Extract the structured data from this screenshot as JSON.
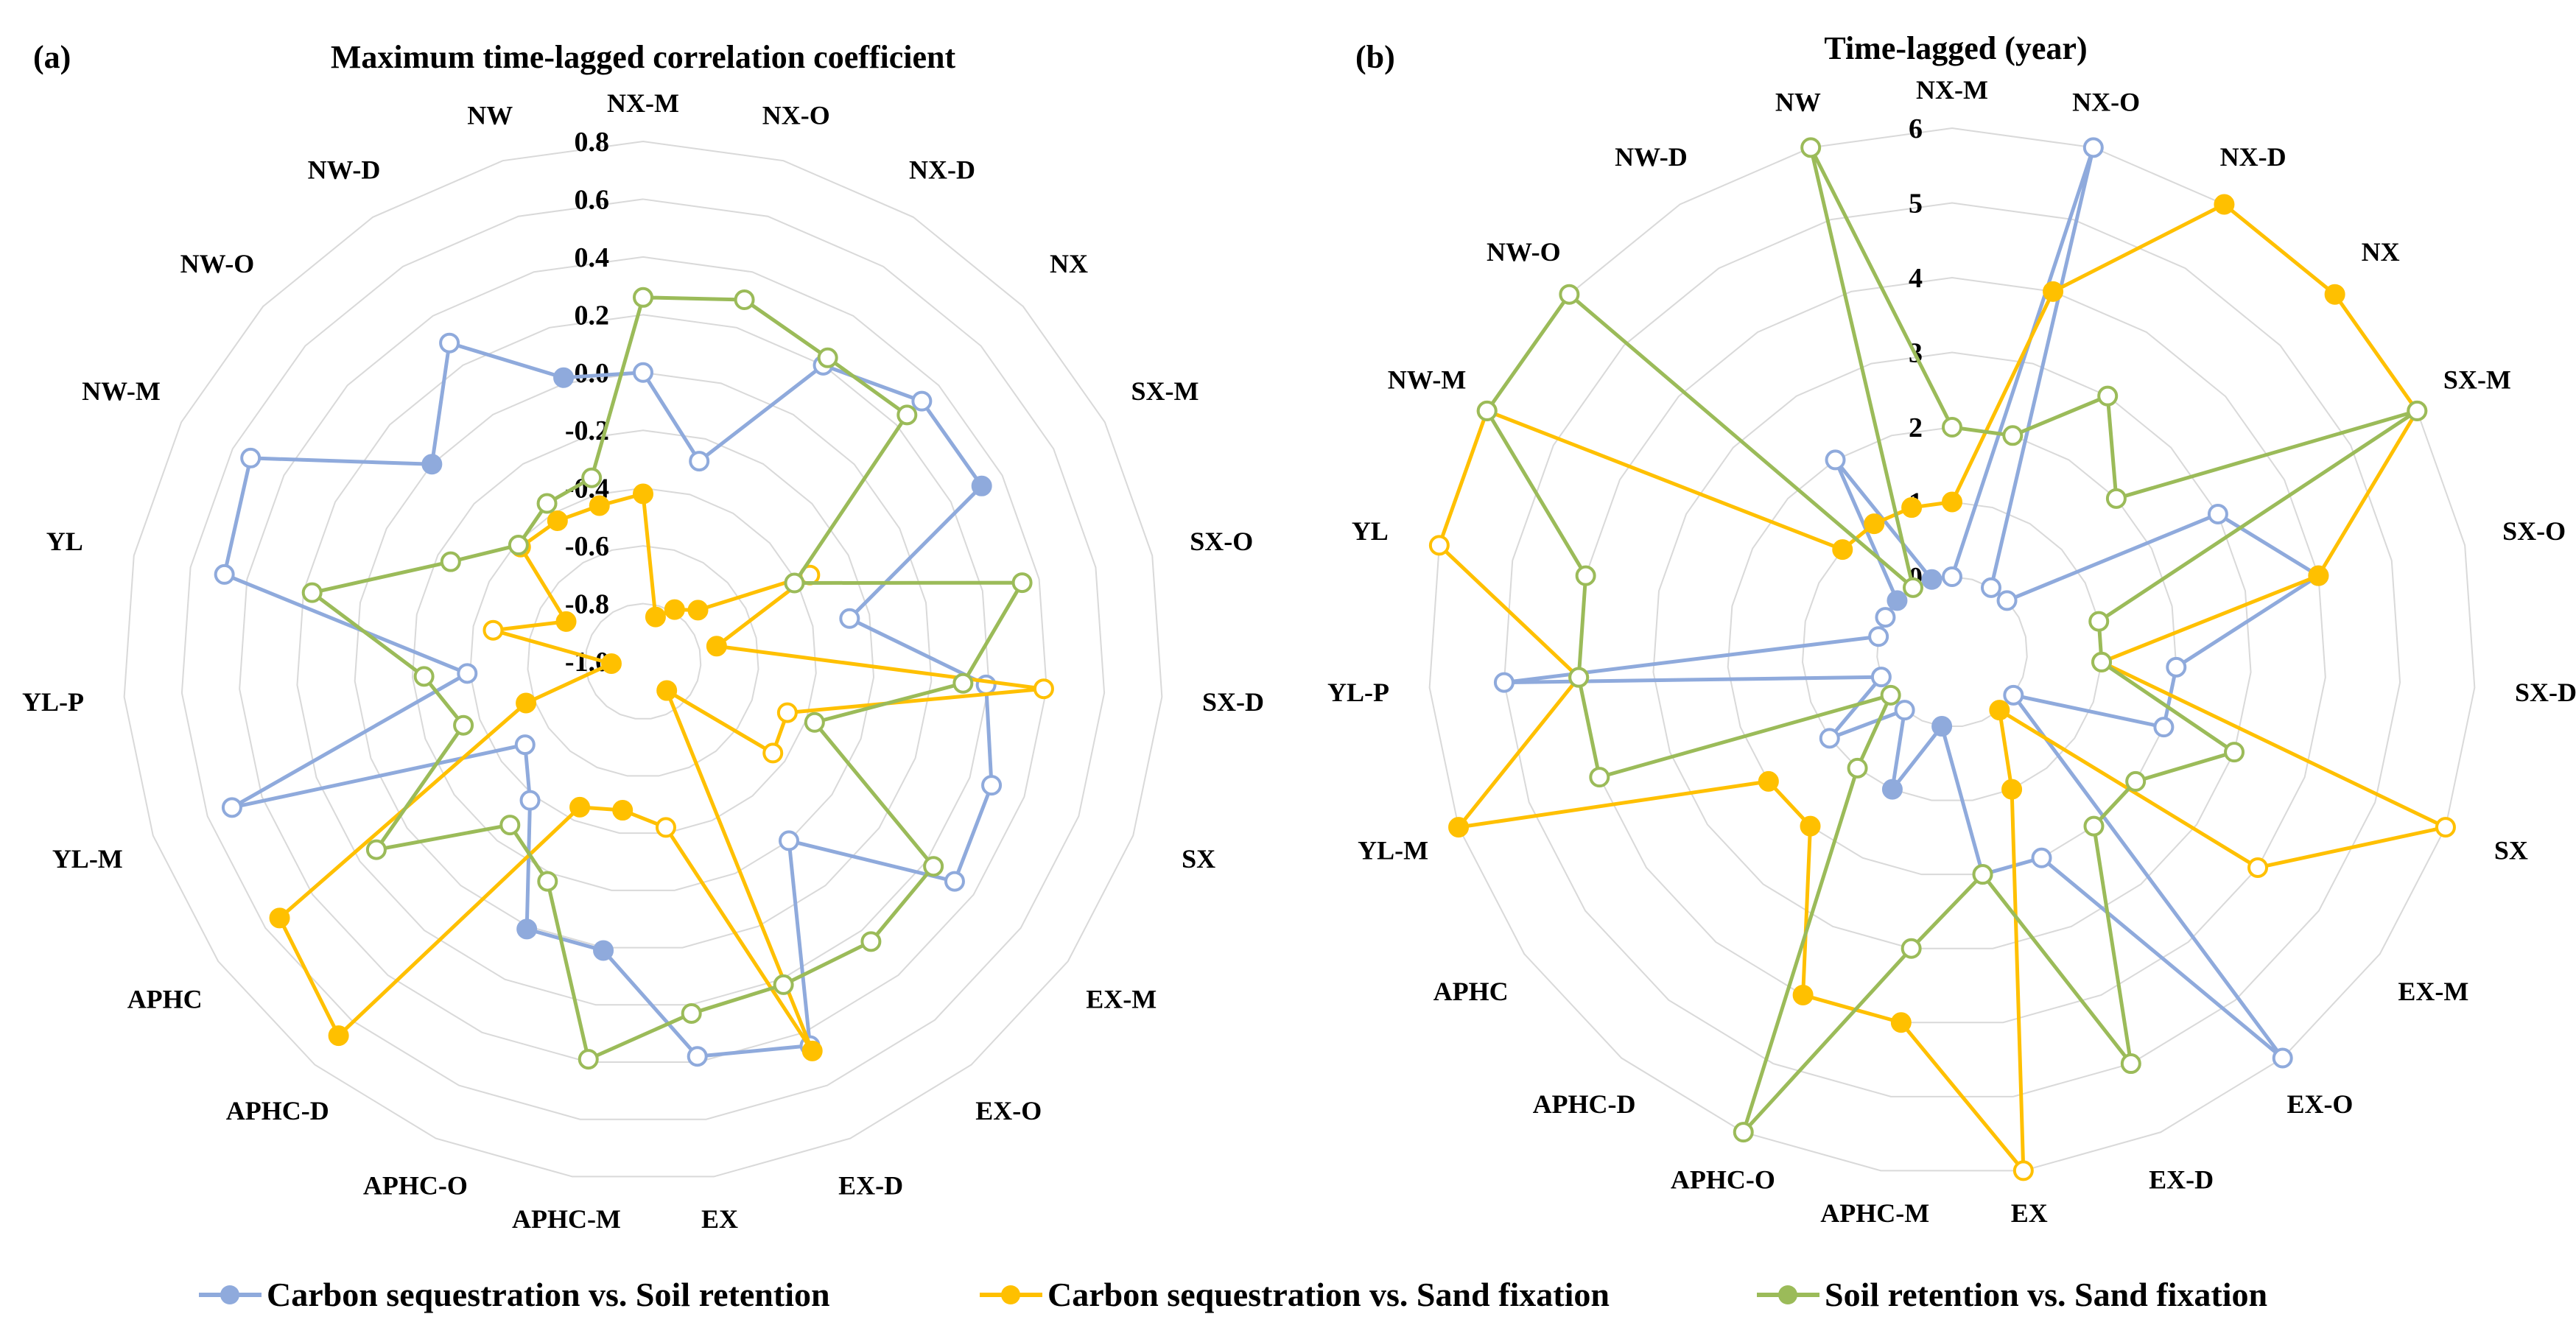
{
  "chart_data": [
    {
      "type": "radar",
      "panel_label": "(a)",
      "title": "Maximum time-lagged correlation coefficient",
      "categories": [
        "NX-M",
        "NX-O",
        "NX-D",
        "NX",
        "SX-M",
        "SX-O",
        "SX-D",
        "SX",
        "EX-M",
        "EX-O",
        "EX-D",
        "EX",
        "APHC-M",
        "APHC-O",
        "APHC-D",
        "APHC",
        "YL-M",
        "YL-P",
        "YL",
        "NW-M",
        "NW-O",
        "NW-D",
        "NW"
      ],
      "range": [
        -1.0,
        0.8
      ],
      "ticks": [
        "0.8",
        "0.6",
        "0.4",
        "0.2",
        "0.0",
        "-0.2",
        "-0.4",
        "-0.6",
        "-0.8",
        "-1.0"
      ],
      "tick_values": [
        0.8,
        0.6,
        0.4,
        0.2,
        0.0,
        -0.2,
        -0.4,
        -0.6,
        -0.8,
        -1.0
      ],
      "grid": true,
      "series": [
        {
          "name": "Carbon sequestration vs. Soil retention",
          "color": "#8FAADC",
          "values": [
            0.0,
            -0.28,
            0.2,
            0.32,
            0.32,
            -0.27,
            0.19,
            0.28,
            0.32,
            -0.2,
            0.45,
            0.38,
            0.01,
            0.01,
            -0.38,
            -0.5,
            0.51,
            -0.39,
            0.48,
            0.53,
            0.0,
            0.29,
            0.02
          ],
          "filled": [
            false,
            false,
            false,
            false,
            true,
            false,
            false,
            false,
            false,
            false,
            false,
            false,
            true,
            true,
            false,
            false,
            false,
            false,
            false,
            false,
            true,
            false,
            true
          ]
        },
        {
          "name": "Carbon sequestration vs. Sand fixation",
          "color": "#FFC000",
          "values": [
            -0.42,
            -0.84,
            -0.79,
            -0.74,
            -0.35,
            -0.74,
            0.39,
            -0.47,
            -0.45,
            -0.87,
            0.47,
            -0.42,
            -0.48,
            -0.45,
            0.67,
            0.54,
            -0.57,
            -0.89,
            -0.47,
            -0.7,
            -0.42,
            -0.43,
            -0.44
          ],
          "filled": [
            true,
            true,
            true,
            true,
            false,
            true,
            false,
            false,
            false,
            true,
            true,
            false,
            true,
            true,
            true,
            true,
            true,
            true,
            false,
            true,
            false,
            true,
            true
          ]
        },
        {
          "name": "Soil retention vs. Sand fixation",
          "color": "#9BBB59",
          "values": [
            0.26,
            0.3,
            0.23,
            0.25,
            -0.41,
            0.34,
            0.11,
            -0.37,
            0.23,
            0.25,
            0.22,
            0.23,
            0.39,
            -0.17,
            -0.27,
            0.13,
            -0.34,
            -0.24,
            0.17,
            -0.25,
            -0.41,
            -0.36,
            -0.34
          ],
          "filled": [
            false,
            false,
            false,
            false,
            false,
            false,
            false,
            false,
            false,
            false,
            false,
            false,
            false,
            false,
            false,
            false,
            false,
            false,
            false,
            false,
            false,
            false,
            false
          ]
        }
      ]
    },
    {
      "type": "radar",
      "panel_label": "(b)",
      "title": "Time-lagged (year)",
      "categories": [
        "NX-M",
        "NX-O",
        "NX-D",
        "NX",
        "SX-M",
        "SX-O",
        "SX-D",
        "SX",
        "EX-M",
        "EX-O",
        "EX-D",
        "EX",
        "APHC-M",
        "APHC-O",
        "APHC-D",
        "APHC",
        "YL-M",
        "YL-P",
        "YL",
        "NW-M",
        "NW-O",
        "NW-D",
        "NW"
      ],
      "range": [
        0,
        6
      ],
      "ticks": [
        "6",
        "5",
        "4",
        "3",
        "2",
        "1",
        "0"
      ],
      "tick_values": [
        6,
        5,
        4,
        3,
        2,
        1,
        0
      ],
      "grid": true,
      "series": [
        {
          "name": "Carbon sequestration vs. Soil retention",
          "color": "#8FAADC",
          "values": [
            0,
            6,
            0,
            0,
            3,
            4,
            2,
            2,
            0,
            6,
            2,
            2,
            0,
            1,
            0,
            1,
            0,
            5,
            0,
            0,
            0,
            2,
            0
          ],
          "filled": [
            false,
            false,
            false,
            false,
            false,
            true,
            false,
            false,
            false,
            false,
            false,
            false,
            true,
            true,
            false,
            false,
            false,
            false,
            false,
            false,
            true,
            false,
            true
          ]
        },
        {
          "name": "Carbon sequestration vs. Sand fixation",
          "color": "#FFC000",
          "values": [
            1,
            4,
            6,
            6,
            6,
            4,
            1,
            6,
            4,
            0,
            1,
            6,
            4,
            4,
            2,
            2,
            6,
            4,
            6,
            6,
            1,
            1,
            1
          ],
          "filled": [
            true,
            true,
            true,
            true,
            false,
            true,
            false,
            false,
            false,
            true,
            true,
            false,
            true,
            true,
            true,
            true,
            true,
            false,
            false,
            true,
            true,
            true,
            true
          ]
        },
        {
          "name": "Soil retention vs. Sand fixation",
          "color": "#9BBB59",
          "values": [
            2,
            2,
            3,
            2,
            6,
            1,
            1,
            3,
            2,
            2,
            5,
            2,
            3,
            6,
            1,
            0,
            4,
            4,
            4,
            6,
            6,
            0,
            6
          ],
          "filled": [
            false,
            false,
            false,
            false,
            false,
            false,
            false,
            false,
            false,
            false,
            false,
            false,
            false,
            false,
            false,
            false,
            false,
            false,
            false,
            false,
            false,
            false,
            false
          ]
        }
      ]
    }
  ],
  "legend": [
    {
      "label": "Carbon sequestration vs. Soil retention",
      "color": "#8FAADC"
    },
    {
      "label": "Carbon sequestration vs. Sand fixation",
      "color": "#FFC000"
    },
    {
      "label": "Soil retention vs. Sand fixation",
      "color": "#9BBB59"
    }
  ]
}
